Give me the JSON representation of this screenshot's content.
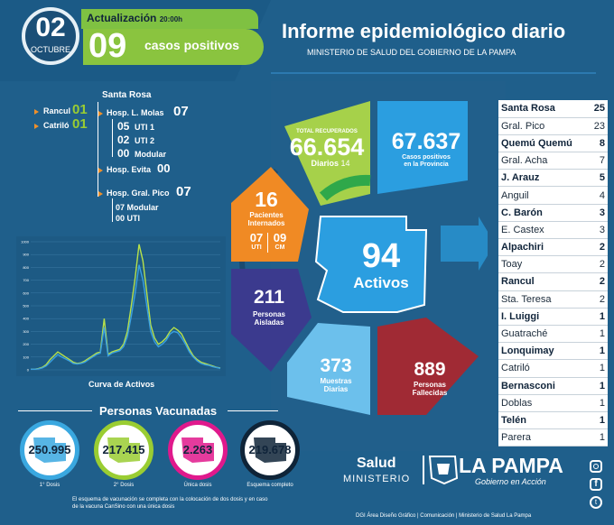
{
  "header": {
    "day": "02",
    "month": "OCTUBRE",
    "update_label": "Actualización",
    "update_time": "20:00h",
    "positives_count": "09",
    "positives_label": "casos positivos",
    "title": "Informe epidemiológico diario",
    "subtitle": "MINISTERIO DE SALUD DEL GOBIERNO DE LA PAMPA"
  },
  "tree": {
    "rancul_label": "Rancul",
    "rancul_value": "01",
    "catrilo_label": "Catriló",
    "catrilo_value": "01",
    "santa_rosa_label": "Santa Rosa",
    "molas_label": "Hosp. L. Molas",
    "molas_value": "07",
    "uti1_value": "05",
    "uti1_label": "UTI 1",
    "uti2_value": "02",
    "uti2_label": "UTI 2",
    "modular1_value": "00",
    "modular1_label": "Modular",
    "evita_label": "Hosp. Evita",
    "evita_value": "00",
    "pico_label": "Hosp. Gral. Pico",
    "pico_value": "07",
    "modular2_value": "07",
    "modular2_label": "Modular",
    "uti3_value": "00",
    "uti3_label": "UTI"
  },
  "chart_data": {
    "type": "line",
    "title": "Curva de Activos",
    "xlabel": "",
    "ylabel": "",
    "y_ticks": [
      "1000",
      "900",
      "800",
      "700",
      "600",
      "500",
      "400",
      "300",
      "200",
      "100",
      "0"
    ],
    "ylim": [
      0,
      1000
    ],
    "series": [
      {
        "name": "",
        "color": "#b7e14a",
        "values": [
          5,
          5,
          10,
          20,
          40,
          80,
          110,
          140,
          120,
          100,
          80,
          60,
          50,
          55,
          70,
          90,
          110,
          130,
          140,
          400,
          120,
          140,
          150,
          160,
          200,
          300,
          500,
          720,
          980,
          850,
          600,
          350,
          250,
          200,
          220,
          250,
          300,
          330,
          310,
          280,
          220,
          160,
          110,
          80,
          60,
          50,
          40,
          30,
          20,
          15
        ]
      },
      {
        "name": "",
        "color": "#3aa0e0",
        "values": [
          5,
          5,
          8,
          15,
          30,
          60,
          90,
          120,
          100,
          85,
          70,
          50,
          45,
          50,
          60,
          80,
          100,
          120,
          130,
          330,
          110,
          130,
          140,
          150,
          180,
          260,
          420,
          600,
          820,
          700,
          500,
          300,
          220,
          180,
          200,
          230,
          280,
          300,
          290,
          250,
          200,
          140,
          100,
          70,
          50,
          40,
          35,
          25,
          18,
          12
        ]
      }
    ]
  },
  "wheel": {
    "recovered_label": "TOTAL RECUPERADOS",
    "recovered_value": "66.654",
    "daily_label": "Diarios",
    "daily_value": "14",
    "cases_value": "67.637",
    "cases_label_1": "Casos positivos",
    "cases_label_2": "en la Provincia",
    "hosp_value": "16",
    "hosp_label_1": "Pacientes",
    "hosp_label_2": "Internados",
    "uti_value": "07",
    "uti_label": "UTI",
    "cm_value": "09",
    "cm_label": "CM",
    "isolated_value": "211",
    "isolated_label_1": "Personas",
    "isolated_label_2": "Aisladas",
    "samples_value": "373",
    "samples_label_1": "Muestras",
    "samples_label_2": "Diarias",
    "deaths_value": "889",
    "deaths_label_1": "Personas",
    "deaths_label_2": "Fallecidas",
    "active_value": "94",
    "active_label": "Activos"
  },
  "cities": [
    {
      "name": "Santa Rosa",
      "value": "25",
      "bold": true
    },
    {
      "name": "Gral. Pico",
      "value": "23",
      "bold": false
    },
    {
      "name": "Quemú Quemú",
      "value": "8",
      "bold": true
    },
    {
      "name": "Gral. Acha",
      "value": "7",
      "bold": false
    },
    {
      "name": "J. Arauz",
      "value": "5",
      "bold": true
    },
    {
      "name": "Anguil",
      "value": "4",
      "bold": false
    },
    {
      "name": "C. Barón",
      "value": "3",
      "bold": true
    },
    {
      "name": "E. Castex",
      "value": "3",
      "bold": false
    },
    {
      "name": "Alpachiri",
      "value": "2",
      "bold": true
    },
    {
      "name": "Toay",
      "value": "2",
      "bold": false
    },
    {
      "name": "Rancul",
      "value": "2",
      "bold": true
    },
    {
      "name": "Sta. Teresa",
      "value": "2",
      "bold": false
    },
    {
      "name": "I. Luiggi",
      "value": "1",
      "bold": true
    },
    {
      "name": "Guatraché",
      "value": "1",
      "bold": false
    },
    {
      "name": "Lonquimay",
      "value": "1",
      "bold": true
    },
    {
      "name": "Catriló",
      "value": "1",
      "bold": false
    },
    {
      "name": "Bernasconi",
      "value": "1",
      "bold": true
    },
    {
      "name": "Doblas",
      "value": "1",
      "bold": false
    },
    {
      "name": "Telén",
      "value": "1",
      "bold": true
    },
    {
      "name": "Parera",
      "value": "1",
      "bold": false
    }
  ],
  "vaccinated": {
    "title": "Personas Vacunadas",
    "items": [
      {
        "value": "250.995",
        "label": "1° Dosis",
        "color": "#3aa8e0"
      },
      {
        "value": "217.415",
        "label": "2° Dosis",
        "color": "#9acd32"
      },
      {
        "value": "2.263",
        "label": "Única dosis",
        "color": "#e0198c"
      },
      {
        "value": "219.678",
        "label": "Esquema completo",
        "color": "#0f2438"
      }
    ],
    "note": "El esquema de vacunación se completa con la colocación de dos dosis y en caso de la vacuna CanSino con una única dosis"
  },
  "footer": {
    "salud": "Salud",
    "ministerio": "MINISTERIO",
    "brand": "LA PAMPA",
    "brand_tagline": "Gobierno en Acción",
    "credits": "DGI Área Diseño Gráfico  |  Comunicación  |  Ministerio de Salud La Pampa"
  },
  "icons": [
    "instagram-icon",
    "facebook-icon",
    "twitter-icon"
  ]
}
